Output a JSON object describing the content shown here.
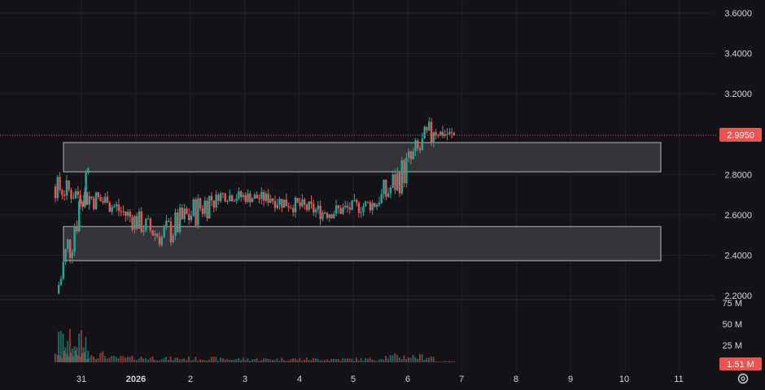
{
  "colors": {
    "background": "#131317",
    "grid": "#1f1f24",
    "up": "#26a69a",
    "down": "#ef5350",
    "zone_fill": "#3b3b3f",
    "zone_stroke": "#b8b8b8",
    "price_line": "#ef5350",
    "axis_text": "#d1d4dc"
  },
  "price_axis": {
    "labels": [
      "3.6000",
      "3.4000",
      "3.2000",
      "2.8000",
      "2.6000",
      "2.4000",
      "2.2000"
    ],
    "current_price": "2.9950"
  },
  "volume_axis": {
    "labels": [
      "75 M",
      "50 M",
      "25 M"
    ],
    "current_volume": "1.51 M"
  },
  "time_axis": {
    "labels": [
      "31",
      "2026",
      "2",
      "3",
      "4",
      "5",
      "6",
      "7",
      "8",
      "9",
      "10",
      "11"
    ]
  },
  "settings_icon": "gear-icon",
  "chart_data": {
    "type": "candlestick",
    "title": "",
    "ylim": [
      2.2,
      3.62
    ],
    "grid": true,
    "zones": [
      {
        "low": 2.813,
        "high": 2.958,
        "from": "2025-12-30",
        "to": "2026-01-10"
      },
      {
        "low": 2.373,
        "high": 2.542,
        "from": "2025-12-30",
        "to": "2026-01-10"
      }
    ],
    "series": [
      {
        "day": "2025-12-30",
        "open": 2.21,
        "high": 2.95,
        "low": 2.17,
        "close": 2.83,
        "volume": 35
      },
      {
        "day": "2025-12-31",
        "open": 2.74,
        "high": 2.88,
        "low": 2.54,
        "close": 2.66,
        "volume": 12
      },
      {
        "day": "2026-01-01",
        "open": 2.66,
        "high": 2.79,
        "low": 2.44,
        "close": 2.49,
        "volume": 7
      },
      {
        "day": "2026-01-02",
        "open": 2.49,
        "high": 2.78,
        "low": 2.31,
        "close": 2.7,
        "volume": 6
      },
      {
        "day": "2026-01-03",
        "open": 2.7,
        "high": 2.79,
        "low": 2.61,
        "close": 2.68,
        "volume": 5
      },
      {
        "day": "2026-01-04",
        "open": 2.68,
        "high": 2.73,
        "low": 2.5,
        "close": 2.61,
        "volume": 5
      },
      {
        "day": "2026-01-05",
        "open": 2.61,
        "high": 2.75,
        "low": 2.53,
        "close": 2.66,
        "volume": 5
      },
      {
        "day": "2026-01-06",
        "open": 2.66,
        "high": 3.16,
        "low": 2.65,
        "close": 3.01,
        "volume": 9
      },
      {
        "day": "2026-01-07",
        "open": 3.01,
        "high": 3.1,
        "low": 2.95,
        "close": 2.995,
        "volume": 1.51
      }
    ]
  }
}
